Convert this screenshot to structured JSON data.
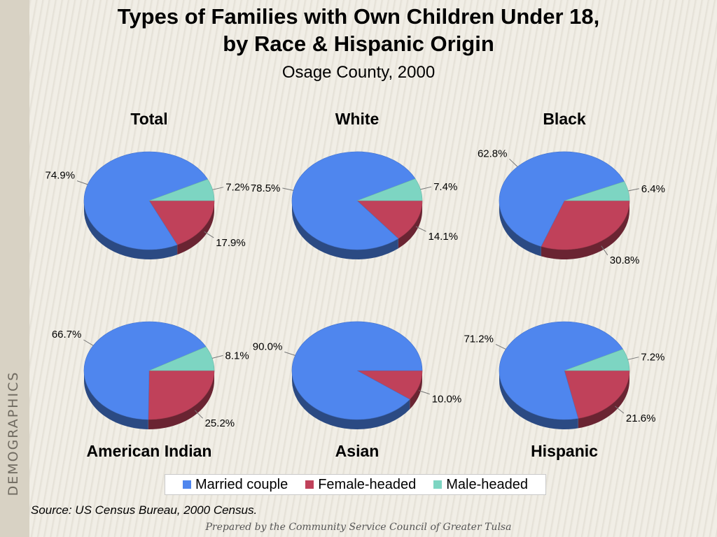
{
  "page": {
    "title_line1": "Types of Families with Own Children Under 18,",
    "title_line2": "by Race & Hispanic Origin",
    "subtitle": "Osage County, 2000",
    "sidebar_label": "DEMOGRAPHICS",
    "source": "Source:  US Census Bureau, 2000 Census.",
    "footer": "Prepared by the Community Service Council of Greater Tulsa"
  },
  "legend": [
    {
      "label": "Married couple",
      "color": "#4f86ee"
    },
    {
      "label": "Female-headed",
      "color": "#c0415a"
    },
    {
      "label": "Male-headed",
      "color": "#7dd5c2"
    }
  ],
  "chart_data": [
    {
      "type": "pie",
      "title": "Total",
      "categories": [
        "Married couple",
        "Female-headed",
        "Male-headed"
      ],
      "values": [
        74.9,
        17.9,
        7.2
      ],
      "labels": [
        "74.9%",
        "17.9%",
        "7.2%"
      ]
    },
    {
      "type": "pie",
      "title": "White",
      "categories": [
        "Married couple",
        "Female-headed",
        "Male-headed"
      ],
      "values": [
        78.5,
        14.1,
        7.4
      ],
      "labels": [
        "78.5%",
        "14.1%",
        "7.4%"
      ]
    },
    {
      "type": "pie",
      "title": "Black",
      "categories": [
        "Married couple",
        "Female-headed",
        "Male-headed"
      ],
      "values": [
        62.8,
        30.8,
        6.4
      ],
      "labels": [
        "62.8%",
        "30.8%",
        "6.4%"
      ]
    },
    {
      "type": "pie",
      "title": "American Indian",
      "categories": [
        "Married couple",
        "Female-headed",
        "Male-headed"
      ],
      "values": [
        66.7,
        25.2,
        8.1
      ],
      "labels": [
        "66.7%",
        "25.2%",
        "8.1%"
      ]
    },
    {
      "type": "pie",
      "title": "Asian",
      "categories": [
        "Married couple",
        "Female-headed",
        "Male-headed"
      ],
      "values": [
        90.0,
        10.0,
        0
      ],
      "labels": [
        "90.0%",
        "10.0%",
        ""
      ]
    },
    {
      "type": "pie",
      "title": "Hispanic",
      "categories": [
        "Married couple",
        "Female-headed",
        "Male-headed"
      ],
      "values": [
        71.2,
        21.6,
        7.2
      ],
      "labels": [
        "71.2%",
        "21.6%",
        "7.2%"
      ]
    }
  ]
}
